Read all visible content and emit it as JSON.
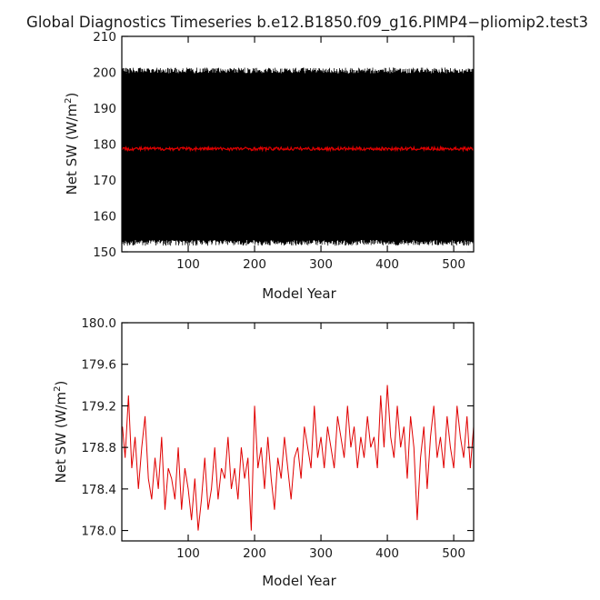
{
  "title": "Global Diagnostics Timeseries b.e12.B1850.f09_g16.PIMP4−pliomip2.test3",
  "colors": {
    "monthly": "#000000",
    "annual": "#e00000",
    "background": "#ffffff"
  },
  "chart_data": [
    {
      "type": "line",
      "ylabel_main": "Net SW (W/m",
      "ylabel_sup": "2",
      "ylabel_close": ")",
      "xlabel": "Model Year",
      "xlim": [
        0,
        530
      ],
      "ylim": [
        150,
        210
      ],
      "xticks": [
        100,
        200,
        300,
        400,
        500
      ],
      "xtick_labels": [
        "100",
        "200",
        "300",
        "400",
        "500"
      ],
      "yticks": [
        150,
        160,
        170,
        180,
        190,
        200,
        210
      ],
      "ytick_labels": [
        "150",
        "160",
        "170",
        "180",
        "190",
        "200",
        "210"
      ],
      "grid": false,
      "series": [
        {
          "style": "monthly",
          "color": "#000000",
          "pattern": "seasonal cycle, 12 values per model year",
          "x_range": [
            0,
            530
          ],
          "y_min": 152.5,
          "y_max": 200.5
        },
        {
          "style": "annual",
          "color": "#e00000",
          "x_range": [
            0,
            530
          ],
          "y_min": 178.0,
          "y_max": 179.5,
          "mean": 178.7
        }
      ]
    },
    {
      "type": "line",
      "ylabel_main": "Net SW (W/m",
      "ylabel_sup": "2",
      "ylabel_close": ")",
      "xlabel": "Model Year",
      "xlim": [
        0,
        530
      ],
      "ylim": [
        177.9,
        180.0
      ],
      "xticks": [
        100,
        200,
        300,
        400,
        500
      ],
      "xtick_labels": [
        "100",
        "200",
        "300",
        "400",
        "500"
      ],
      "yticks": [
        178.0,
        178.4,
        178.8,
        179.2,
        179.6,
        180.0
      ],
      "ytick_labels": [
        "178.0",
        "178.4",
        "178.8",
        "179.2",
        "179.6",
        "180.0"
      ],
      "grid": false,
      "series": [
        {
          "style": "annual",
          "color": "#e00000",
          "x": [
            1,
            5,
            10,
            15,
            20,
            25,
            30,
            35,
            40,
            45,
            50,
            55,
            60,
            65,
            70,
            75,
            80,
            85,
            90,
            95,
            100,
            105,
            110,
            115,
            120,
            125,
            130,
            135,
            140,
            145,
            150,
            155,
            160,
            165,
            170,
            175,
            180,
            185,
            190,
            195,
            200,
            205,
            210,
            215,
            220,
            225,
            230,
            235,
            240,
            245,
            250,
            255,
            260,
            265,
            270,
            275,
            280,
            285,
            290,
            295,
            300,
            305,
            310,
            315,
            320,
            325,
            330,
            335,
            340,
            345,
            350,
            355,
            360,
            365,
            370,
            375,
            380,
            385,
            390,
            395,
            400,
            405,
            410,
            415,
            420,
            425,
            430,
            435,
            440,
            445,
            450,
            455,
            460,
            465,
            470,
            475,
            480,
            485,
            490,
            495,
            500,
            505,
            510,
            515,
            520,
            525,
            530
          ],
          "values": [
            179.0,
            178.7,
            179.3,
            178.6,
            178.9,
            178.4,
            178.8,
            179.1,
            178.5,
            178.3,
            178.7,
            178.4,
            178.9,
            178.2,
            178.6,
            178.5,
            178.3,
            178.8,
            178.2,
            178.6,
            178.4,
            178.1,
            178.5,
            178.0,
            178.3,
            178.7,
            178.2,
            178.4,
            178.8,
            178.3,
            178.6,
            178.5,
            178.9,
            178.4,
            178.6,
            178.3,
            178.8,
            178.5,
            178.7,
            178.0,
            179.2,
            178.6,
            178.8,
            178.4,
            178.9,
            178.5,
            178.2,
            178.7,
            178.5,
            178.9,
            178.6,
            178.3,
            178.7,
            178.8,
            178.5,
            179.0,
            178.8,
            178.6,
            179.2,
            178.7,
            178.9,
            178.6,
            179.0,
            178.8,
            178.6,
            179.1,
            178.9,
            178.7,
            179.2,
            178.8,
            179.0,
            178.6,
            178.9,
            178.7,
            179.1,
            178.8,
            178.9,
            178.6,
            179.3,
            178.8,
            179.4,
            178.9,
            178.7,
            179.2,
            178.8,
            179.0,
            178.5,
            179.1,
            178.8,
            178.1,
            178.7,
            179.0,
            178.4,
            178.9,
            179.2,
            178.7,
            178.9,
            178.6,
            179.1,
            178.8,
            178.6,
            179.2,
            178.9,
            178.7,
            179.1,
            178.6,
            179.0
          ]
        }
      ]
    }
  ]
}
